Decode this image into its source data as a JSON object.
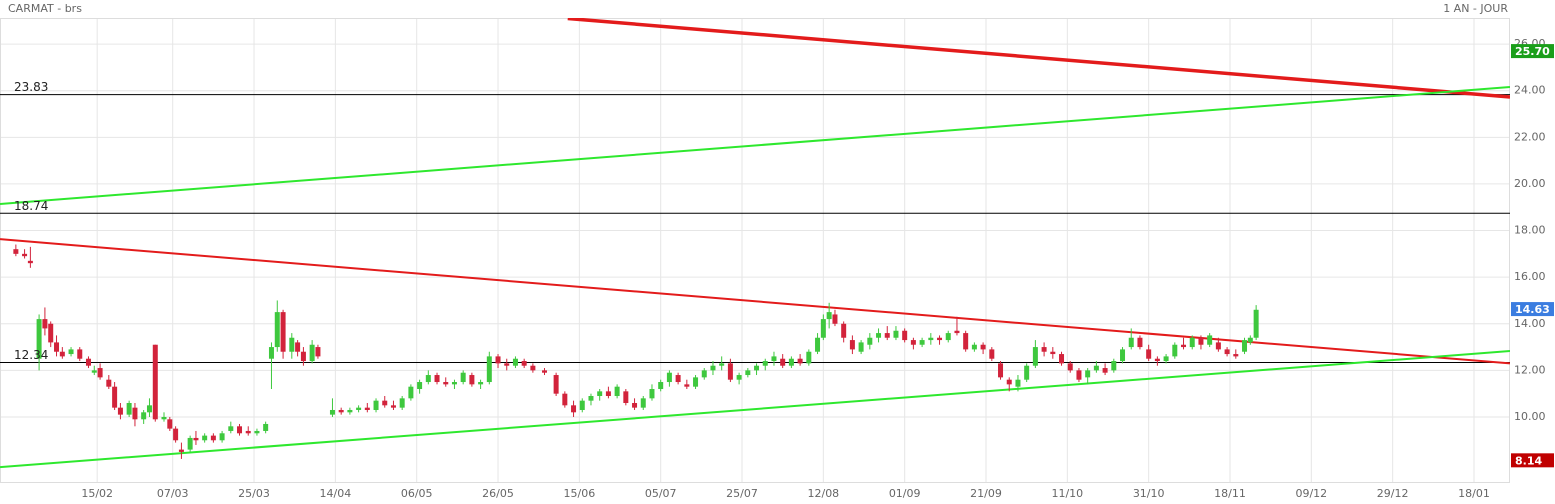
{
  "chart_data": {
    "type": "candlestick",
    "title": "CARMAT - brs",
    "subtitle": "1 AN - JOUR",
    "up_color": "#3ec83e",
    "down_color": "#d2233b",
    "grid": true,
    "xlim": [
      -1.73,
      258.2
    ],
    "ylim": [
      7.21,
      27.12
    ],
    "xticks": [
      {
        "value": 15,
        "label": "15/02"
      },
      {
        "value": 28,
        "label": "07/03"
      },
      {
        "value": 42,
        "label": "25/03"
      },
      {
        "value": 56,
        "label": "14/04"
      },
      {
        "value": 70,
        "label": "06/05"
      },
      {
        "value": 84,
        "label": "26/05"
      },
      {
        "value": 98,
        "label": "15/06"
      },
      {
        "value": 112,
        "label": "05/07"
      },
      {
        "value": 126,
        "label": "25/07"
      },
      {
        "value": 140,
        "label": "12/08"
      },
      {
        "value": 154,
        "label": "01/09"
      },
      {
        "value": 168,
        "label": "21/09"
      },
      {
        "value": 182,
        "label": "11/10"
      },
      {
        "value": 196,
        "label": "31/10"
      },
      {
        "value": 210,
        "label": "18/11"
      },
      {
        "value": 224,
        "label": "09/12"
      },
      {
        "value": 238,
        "label": "29/12"
      },
      {
        "value": 252,
        "label": "18/01"
      }
    ],
    "yticks": [
      {
        "value": 10,
        "label": "10.00"
      },
      {
        "value": 12,
        "label": "12.00"
      },
      {
        "value": 14,
        "label": "14.00"
      },
      {
        "value": 16,
        "label": "16.00"
      },
      {
        "value": 18,
        "label": "18.00"
      },
      {
        "value": 20,
        "label": "20.00"
      },
      {
        "value": 22,
        "label": "22.00"
      },
      {
        "value": 24,
        "label": "24.00"
      },
      {
        "value": 26,
        "label": "26.00"
      }
    ],
    "hlines": [
      23.83,
      18.74,
      12.34
    ],
    "trendlines": [
      {
        "color": "#e31b1b",
        "width": 3.5,
        "x": [
          96,
          258.2
        ],
        "y": [
          27.1,
          23.73
        ]
      },
      {
        "color": "#2ee82e",
        "width": 2,
        "x": [
          -1.73,
          258.2
        ],
        "y": [
          19.14,
          24.16
        ]
      },
      {
        "color": "#e31b1b",
        "width": 2,
        "x": [
          -1.73,
          258.2
        ],
        "y": [
          17.63,
          12.3
        ]
      },
      {
        "color": "#2ee82e",
        "width": 2,
        "x": [
          -1.73,
          258.2
        ],
        "y": [
          7.85,
          12.83
        ]
      }
    ],
    "price_tags": [
      {
        "value": 25.7,
        "label": "25.70",
        "color": "#1a9e1a"
      },
      {
        "value": 14.63,
        "label": "14.63",
        "color": "#3b7de0"
      },
      {
        "value": 8.14,
        "color": "#c00000"
      }
    ],
    "x": [
      1,
      2.5,
      3.5,
      5,
      6,
      7,
      8,
      9,
      10.5,
      12,
      13.5,
      14.5,
      15.5,
      17,
      18,
      19,
      20.5,
      21.5,
      23,
      24,
      25,
      26.5,
      27.5,
      28.5,
      29.5,
      31,
      32,
      33.5,
      35,
      36.5,
      38,
      39.5,
      41,
      42.5,
      44,
      45,
      46,
      47,
      48.5,
      49.5,
      50.5,
      52,
      53,
      55.5,
      57,
      58.5,
      60,
      61.5,
      63,
      64.5,
      66,
      67.5,
      69,
      70.5,
      72,
      73.5,
      75,
      76.5,
      78,
      79.5,
      81,
      82.5,
      84,
      85.5,
      87,
      88.5,
      90,
      92,
      94,
      95.5,
      97,
      98.5,
      100,
      101.5,
      103,
      104.5,
      106,
      107.5,
      109,
      110.5,
      112,
      113.5,
      115,
      116.5,
      118,
      119.5,
      121,
      122.5,
      124,
      125.5,
      127,
      128.5,
      130,
      131.5,
      133,
      134.5,
      136,
      137.5,
      139,
      140,
      141,
      142,
      143.5,
      145,
      146.5,
      148,
      149.5,
      151,
      152.5,
      154,
      155.5,
      157,
      158.5,
      160,
      161.5,
      163,
      164.5,
      166,
      167.5,
      169,
      170.5,
      172,
      173.5,
      175,
      176.5,
      178,
      179.5,
      181,
      182.5,
      184,
      185.5,
      187,
      188.5,
      190,
      191.5,
      193,
      194.5,
      196,
      197.5,
      199,
      200.5,
      202,
      203.5,
      205,
      206.5,
      208,
      209.5,
      211,
      212.5,
      213.5,
      214.5
    ],
    "ohlc": [
      [
        17.2,
        17.4,
        16.9,
        17.0
      ],
      [
        17.0,
        17.2,
        16.8,
        16.9
      ],
      [
        16.7,
        17.3,
        16.4,
        16.6
      ],
      [
        12.5,
        14.4,
        12.0,
        14.2
      ],
      [
        14.2,
        14.7,
        13.5,
        13.8
      ],
      [
        14.0,
        14.1,
        13.0,
        13.2
      ],
      [
        13.2,
        13.5,
        12.6,
        12.8
      ],
      [
        12.8,
        13.0,
        12.5,
        12.6
      ],
      [
        12.7,
        13.0,
        12.6,
        12.9
      ],
      [
        12.9,
        13.0,
        12.4,
        12.5
      ],
      [
        12.5,
        12.6,
        12.1,
        12.2
      ],
      [
        11.9,
        12.2,
        11.8,
        12.0
      ],
      [
        12.1,
        12.3,
        11.6,
        11.7
      ],
      [
        11.6,
        11.8,
        11.2,
        11.3
      ],
      [
        11.3,
        11.5,
        10.3,
        10.4
      ],
      [
        10.4,
        10.6,
        9.9,
        10.1
      ],
      [
        10.1,
        10.7,
        10.0,
        10.6
      ],
      [
        10.4,
        10.6,
        9.6,
        9.9
      ],
      [
        9.9,
        10.3,
        9.7,
        10.2
      ],
      [
        10.2,
        10.8,
        10.0,
        10.5
      ],
      [
        13.1,
        13.1,
        9.8,
        9.9
      ],
      [
        9.9,
        10.2,
        9.8,
        10.0
      ],
      [
        9.9,
        10.0,
        9.4,
        9.5
      ],
      [
        9.5,
        9.6,
        8.9,
        9.0
      ],
      [
        8.6,
        8.9,
        8.2,
        8.5
      ],
      [
        8.6,
        9.2,
        8.5,
        9.1
      ],
      [
        9.1,
        9.4,
        8.8,
        9.0
      ],
      [
        9.0,
        9.3,
        8.9,
        9.2
      ],
      [
        9.2,
        9.3,
        8.9,
        9.0
      ],
      [
        9.0,
        9.4,
        8.9,
        9.3
      ],
      [
        9.4,
        9.8,
        9.3,
        9.6
      ],
      [
        9.6,
        9.7,
        9.2,
        9.3
      ],
      [
        9.4,
        9.6,
        9.2,
        9.3
      ],
      [
        9.3,
        9.5,
        9.2,
        9.4
      ],
      [
        9.4,
        9.8,
        9.3,
        9.7
      ],
      [
        12.5,
        13.2,
        11.2,
        13.0
      ],
      [
        13.0,
        15.0,
        12.8,
        14.5
      ],
      [
        14.5,
        14.6,
        12.5,
        12.8
      ],
      [
        12.8,
        13.6,
        12.5,
        13.4
      ],
      [
        13.2,
        13.3,
        12.6,
        12.8
      ],
      [
        12.8,
        13.0,
        12.2,
        12.4
      ],
      [
        12.4,
        13.3,
        12.3,
        13.1
      ],
      [
        13.0,
        13.1,
        12.5,
        12.6
      ],
      [
        10.1,
        10.8,
        10.0,
        10.3
      ],
      [
        10.3,
        10.4,
        10.1,
        10.2
      ],
      [
        10.2,
        10.4,
        10.1,
        10.3
      ],
      [
        10.3,
        10.5,
        10.2,
        10.4
      ],
      [
        10.4,
        10.6,
        10.2,
        10.3
      ],
      [
        10.3,
        10.8,
        10.2,
        10.7
      ],
      [
        10.7,
        10.9,
        10.4,
        10.5
      ],
      [
        10.5,
        10.7,
        10.3,
        10.4
      ],
      [
        10.4,
        10.9,
        10.3,
        10.8
      ],
      [
        10.8,
        11.4,
        10.7,
        11.3
      ],
      [
        11.2,
        11.6,
        11.0,
        11.5
      ],
      [
        11.5,
        12.0,
        11.4,
        11.8
      ],
      [
        11.8,
        11.9,
        11.4,
        11.5
      ],
      [
        11.5,
        11.7,
        11.3,
        11.4
      ],
      [
        11.4,
        11.6,
        11.2,
        11.5
      ],
      [
        11.5,
        12.0,
        11.4,
        11.9
      ],
      [
        11.8,
        11.9,
        11.3,
        11.4
      ],
      [
        11.4,
        11.6,
        11.2,
        11.5
      ],
      [
        11.5,
        12.8,
        11.4,
        12.6
      ],
      [
        12.6,
        12.7,
        12.1,
        12.3
      ],
      [
        12.3,
        12.5,
        12.0,
        12.2
      ],
      [
        12.2,
        12.6,
        12.1,
        12.5
      ],
      [
        12.4,
        12.5,
        12.1,
        12.2
      ],
      [
        12.2,
        12.3,
        11.9,
        12.0
      ],
      [
        12.0,
        12.1,
        11.8,
        11.9
      ],
      [
        11.8,
        11.9,
        10.9,
        11.0
      ],
      [
        11.0,
        11.1,
        10.4,
        10.5
      ],
      [
        10.5,
        10.7,
        10.0,
        10.2
      ],
      [
        10.3,
        10.8,
        10.2,
        10.7
      ],
      [
        10.7,
        11.0,
        10.5,
        10.9
      ],
      [
        10.9,
        11.2,
        10.7,
        11.1
      ],
      [
        11.1,
        11.3,
        10.8,
        10.9
      ],
      [
        10.9,
        11.4,
        10.8,
        11.3
      ],
      [
        11.1,
        11.2,
        10.5,
        10.6
      ],
      [
        10.6,
        10.8,
        10.3,
        10.4
      ],
      [
        10.4,
        10.9,
        10.3,
        10.8
      ],
      [
        10.8,
        11.4,
        10.7,
        11.2
      ],
      [
        11.2,
        11.6,
        11.1,
        11.5
      ],
      [
        11.5,
        12.0,
        11.3,
        11.9
      ],
      [
        11.8,
        11.9,
        11.4,
        11.5
      ],
      [
        11.4,
        11.6,
        11.2,
        11.3
      ],
      [
        11.3,
        11.8,
        11.2,
        11.7
      ],
      [
        11.7,
        12.1,
        11.6,
        12.0
      ],
      [
        12.0,
        12.4,
        11.8,
        12.2
      ],
      [
        12.2,
        12.6,
        12.0,
        12.3
      ],
      [
        12.3,
        12.5,
        11.5,
        11.6
      ],
      [
        11.6,
        11.9,
        11.4,
        11.8
      ],
      [
        11.8,
        12.1,
        11.7,
        12.0
      ],
      [
        12.0,
        12.3,
        11.8,
        12.2
      ],
      [
        12.2,
        12.5,
        12.0,
        12.4
      ],
      [
        12.4,
        12.8,
        12.2,
        12.6
      ],
      [
        12.5,
        12.7,
        12.1,
        12.2
      ],
      [
        12.2,
        12.6,
        12.1,
        12.5
      ],
      [
        12.5,
        12.7,
        12.2,
        12.3
      ],
      [
        12.3,
        12.9,
        12.2,
        12.8
      ],
      [
        12.8,
        13.6,
        12.7,
        13.4
      ],
      [
        13.4,
        14.4,
        13.3,
        14.2
      ],
      [
        14.2,
        14.9,
        13.8,
        14.5
      ],
      [
        14.4,
        14.6,
        13.9,
        14.0
      ],
      [
        14.0,
        14.1,
        13.2,
        13.4
      ],
      [
        13.3,
        13.5,
        12.7,
        12.9
      ],
      [
        12.8,
        13.3,
        12.7,
        13.2
      ],
      [
        13.1,
        13.6,
        12.9,
        13.4
      ],
      [
        13.4,
        13.8,
        13.2,
        13.6
      ],
      [
        13.6,
        13.9,
        13.3,
        13.4
      ],
      [
        13.4,
        13.9,
        13.3,
        13.7
      ],
      [
        13.7,
        13.8,
        13.2,
        13.3
      ],
      [
        13.3,
        13.4,
        12.9,
        13.1
      ],
      [
        13.1,
        13.4,
        13.0,
        13.3
      ],
      [
        13.3,
        13.6,
        13.1,
        13.4
      ],
      [
        13.4,
        13.5,
        13.1,
        13.3
      ],
      [
        13.3,
        13.7,
        13.2,
        13.6
      ],
      [
        13.7,
        14.3,
        13.5,
        13.6
      ],
      [
        13.6,
        13.7,
        12.8,
        12.9
      ],
      [
        12.9,
        13.2,
        12.8,
        13.1
      ],
      [
        13.1,
        13.2,
        12.7,
        12.9
      ],
      [
        12.9,
        13.0,
        12.4,
        12.5
      ],
      [
        12.3,
        12.4,
        11.6,
        11.7
      ],
      [
        11.6,
        11.7,
        11.1,
        11.4
      ],
      [
        11.3,
        11.8,
        11.1,
        11.6
      ],
      [
        11.6,
        12.3,
        11.5,
        12.2
      ],
      [
        12.2,
        13.3,
        12.1,
        13.0
      ],
      [
        13.0,
        13.2,
        12.6,
        12.8
      ],
      [
        12.8,
        13.0,
        12.5,
        12.7
      ],
      [
        12.7,
        12.8,
        12.2,
        12.3
      ],
      [
        12.3,
        12.4,
        11.9,
        12.0
      ],
      [
        12.0,
        12.1,
        11.5,
        11.6
      ],
      [
        11.7,
        12.1,
        11.4,
        12.0
      ],
      [
        12.0,
        12.4,
        11.9,
        12.2
      ],
      [
        12.1,
        12.3,
        11.8,
        11.9
      ],
      [
        12.0,
        12.5,
        11.9,
        12.4
      ],
      [
        12.4,
        13.0,
        12.3,
        12.9
      ],
      [
        13.0,
        13.8,
        12.9,
        13.4
      ],
      [
        13.4,
        13.5,
        12.9,
        13.0
      ],
      [
        12.9,
        13.1,
        12.4,
        12.5
      ],
      [
        12.5,
        12.6,
        12.2,
        12.4
      ],
      [
        12.4,
        12.7,
        12.3,
        12.6
      ],
      [
        12.6,
        13.2,
        12.5,
        13.1
      ],
      [
        13.1,
        13.4,
        12.9,
        13.0
      ],
      [
        13.0,
        13.5,
        12.9,
        13.4
      ],
      [
        13.4,
        13.5,
        12.9,
        13.1
      ],
      [
        13.1,
        13.6,
        13.0,
        13.5
      ],
      [
        13.2,
        13.4,
        12.8,
        12.9
      ],
      [
        12.9,
        13.0,
        12.6,
        12.7
      ],
      [
        12.7,
        12.9,
        12.5,
        12.6
      ],
      [
        12.8,
        13.4,
        12.7,
        13.3
      ],
      [
        13.2,
        13.5,
        13.1,
        13.4
      ],
      [
        13.4,
        14.8,
        13.3,
        14.6
      ]
    ]
  }
}
